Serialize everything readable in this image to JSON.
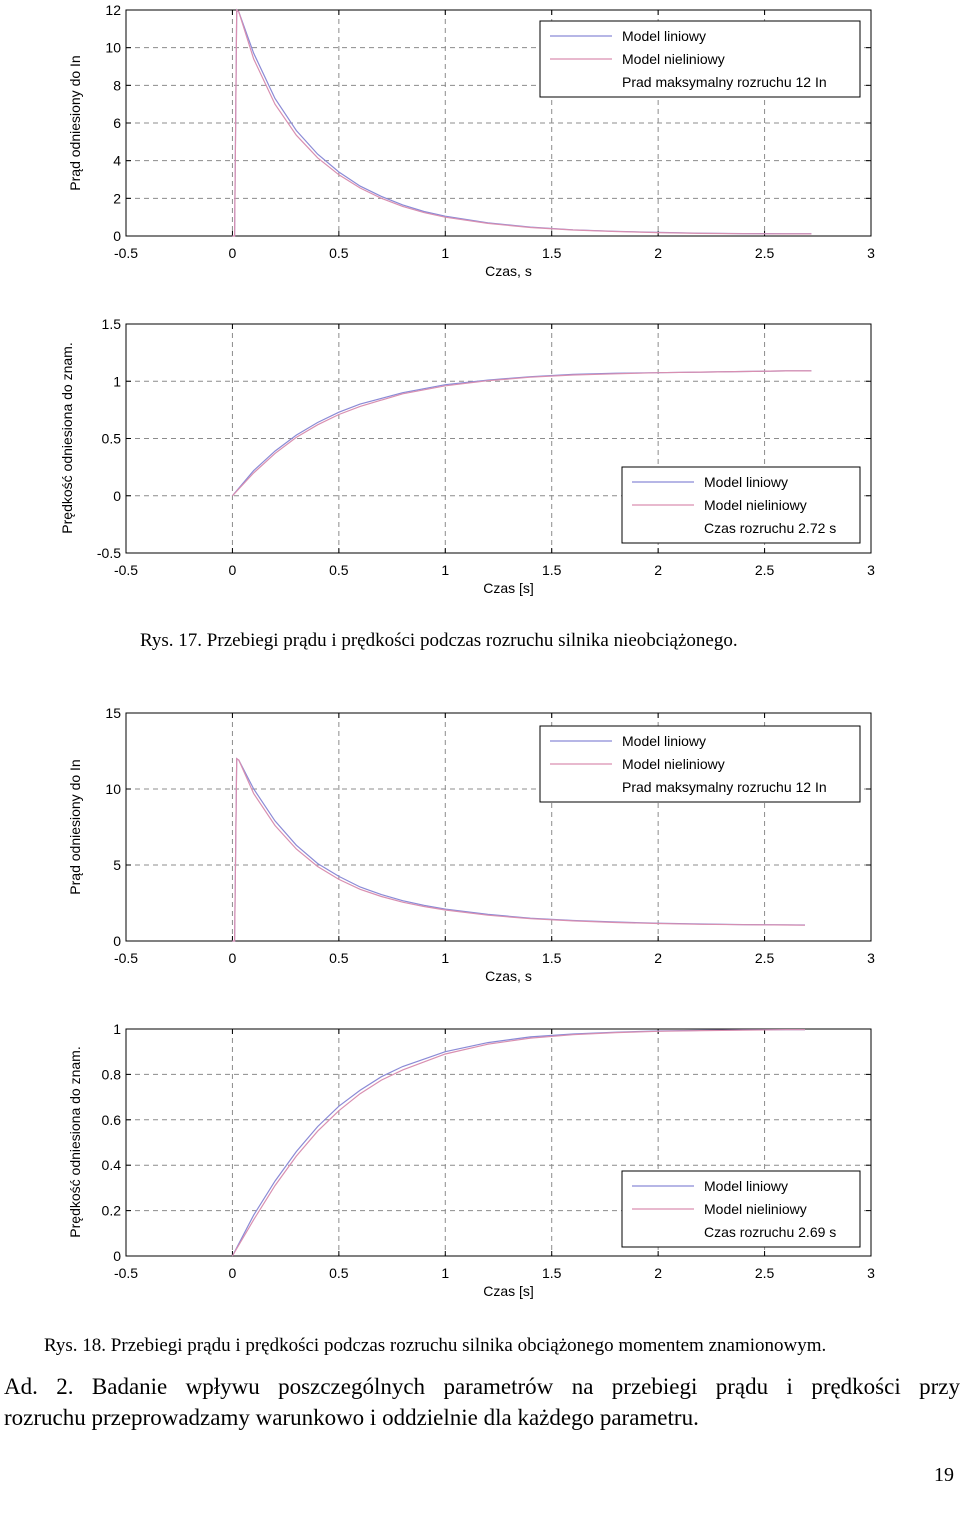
{
  "captions": {
    "fig17": "Rys. 17. Przebiegi prądu i prędkości podczas rozruchu silnika nieobciążonego.",
    "fig18": "Rys. 18. Przebiegi prądu i prędkości podczas rozruchu silnika obciążonego momentem znamionowym."
  },
  "paragraph": {
    "line1": "Ad. 2. Badanie wpływu poszczególnych parametrów na przebiegi prądu i prędkości przy",
    "line2": "rozruchu przeprowadzamy warunkowo i oddzielnie dla każdego parametru."
  },
  "page_number": "19",
  "colors": {
    "linear": "#8a8ad6",
    "nonlinear": "#d98fb0",
    "grid": "#8c8c8c",
    "axis": "#000000"
  },
  "chart_data": [
    {
      "type": "line",
      "id": "fig17-current",
      "xlabel": "Czas, s",
      "ylabel": "Prąd odniesiony do In",
      "xlim": [
        -0.5,
        3
      ],
      "ylim": [
        0,
        12
      ],
      "xticks": [
        -0.5,
        0,
        0.5,
        1,
        1.5,
        2,
        2.5,
        3
      ],
      "yticks": [
        0,
        2,
        4,
        6,
        8,
        10,
        12
      ],
      "legend_position": "top-right",
      "legend": [
        "Model liniowy",
        "Model nieliniowy",
        "Prad maksymalny rozruchu 12 In"
      ],
      "series": [
        {
          "name": "Model liniowy",
          "x": [
            0,
            0.01,
            0.02,
            0.03,
            0.1,
            0.2,
            0.3,
            0.4,
            0.5,
            0.6,
            0.7,
            0.8,
            0.9,
            1.0,
            1.2,
            1.4,
            1.6,
            1.8,
            2.0,
            2.2,
            2.4,
            2.6,
            2.72
          ],
          "y": [
            0,
            0,
            12.0,
            11.9,
            9.7,
            7.3,
            5.6,
            4.35,
            3.4,
            2.65,
            2.1,
            1.65,
            1.3,
            1.05,
            0.7,
            0.47,
            0.33,
            0.25,
            0.19,
            0.15,
            0.13,
            0.12,
            0.12
          ]
        },
        {
          "name": "Model nieliniowy",
          "x": [
            0,
            0.01,
            0.02,
            0.03,
            0.1,
            0.2,
            0.3,
            0.4,
            0.5,
            0.6,
            0.7,
            0.8,
            0.9,
            1.0,
            1.2,
            1.4,
            1.6,
            1.8,
            2.0,
            2.2,
            2.4,
            2.6,
            2.72
          ],
          "y": [
            0,
            0,
            12.0,
            11.9,
            9.4,
            7.0,
            5.35,
            4.15,
            3.25,
            2.55,
            2.0,
            1.57,
            1.24,
            1.0,
            0.67,
            0.45,
            0.32,
            0.24,
            0.18,
            0.14,
            0.12,
            0.11,
            0.11
          ]
        }
      ]
    },
    {
      "type": "line",
      "id": "fig17-speed",
      "xlabel": "Czas [s]",
      "ylabel": "Prędkość odniesiona do znam.",
      "xlim": [
        -0.5,
        3
      ],
      "ylim": [
        -0.5,
        1.5
      ],
      "xticks": [
        -0.5,
        0,
        0.5,
        1,
        1.5,
        2,
        2.5,
        3
      ],
      "yticks": [
        -0.5,
        0,
        0.5,
        1,
        1.5
      ],
      "legend_position": "bottom-right",
      "legend": [
        "Model liniowy",
        "Model nieliniowy",
        "Czas rozruchu 2.72 s"
      ],
      "series": [
        {
          "name": "Model liniowy",
          "x": [
            0,
            0.1,
            0.2,
            0.3,
            0.4,
            0.5,
            0.6,
            0.8,
            1.0,
            1.2,
            1.4,
            1.6,
            1.8,
            2.0,
            2.2,
            2.4,
            2.6,
            2.72
          ],
          "y": [
            0,
            0.22,
            0.39,
            0.53,
            0.64,
            0.73,
            0.8,
            0.9,
            0.97,
            1.01,
            1.04,
            1.06,
            1.07,
            1.075,
            1.08,
            1.085,
            1.09,
            1.09
          ]
        },
        {
          "name": "Model nieliniowy",
          "x": [
            0,
            0.1,
            0.2,
            0.3,
            0.4,
            0.5,
            0.6,
            0.8,
            1.0,
            1.2,
            1.4,
            1.6,
            1.8,
            2.0,
            2.2,
            2.4,
            2.6,
            2.72
          ],
          "y": [
            0,
            0.2,
            0.37,
            0.51,
            0.62,
            0.71,
            0.78,
            0.89,
            0.96,
            1.005,
            1.035,
            1.055,
            1.065,
            1.075,
            1.08,
            1.085,
            1.09,
            1.09
          ]
        }
      ]
    },
    {
      "type": "line",
      "id": "fig18-current",
      "xlabel": "Czas, s",
      "ylabel": "Prąd odniesiony do In",
      "xlim": [
        -0.5,
        3
      ],
      "ylim": [
        0,
        15
      ],
      "xticks": [
        -0.5,
        0,
        0.5,
        1,
        1.5,
        2,
        2.5,
        3
      ],
      "yticks": [
        0,
        5,
        10,
        15
      ],
      "legend_position": "top-right",
      "legend": [
        "Model liniowy",
        "Model nieliniowy",
        "Prad maksymalny rozruchu 12 In"
      ],
      "series": [
        {
          "name": "Model liniowy",
          "x": [
            0,
            0.01,
            0.02,
            0.03,
            0.1,
            0.2,
            0.3,
            0.4,
            0.5,
            0.6,
            0.7,
            0.8,
            0.9,
            1.0,
            1.2,
            1.4,
            1.6,
            1.8,
            2.0,
            2.2,
            2.4,
            2.6,
            2.69
          ],
          "y": [
            0,
            0,
            12.0,
            11.9,
            10.0,
            7.9,
            6.3,
            5.1,
            4.25,
            3.55,
            3.05,
            2.65,
            2.35,
            2.1,
            1.75,
            1.5,
            1.35,
            1.25,
            1.17,
            1.12,
            1.08,
            1.06,
            1.05
          ]
        },
        {
          "name": "Model nieliniowy",
          "x": [
            0,
            0.01,
            0.02,
            0.03,
            0.1,
            0.2,
            0.3,
            0.4,
            0.5,
            0.6,
            0.7,
            0.8,
            0.9,
            1.0,
            1.2,
            1.4,
            1.6,
            1.8,
            2.0,
            2.2,
            2.4,
            2.6,
            2.69
          ],
          "y": [
            0,
            0,
            12.0,
            11.9,
            9.7,
            7.6,
            6.05,
            4.9,
            4.05,
            3.4,
            2.93,
            2.55,
            2.27,
            2.04,
            1.7,
            1.47,
            1.32,
            1.22,
            1.15,
            1.1,
            1.07,
            1.05,
            1.04
          ]
        }
      ]
    },
    {
      "type": "line",
      "id": "fig18-speed",
      "xlabel": "Czas [s]",
      "ylabel": "Prędkość odniesiona do znam.",
      "xlim": [
        -0.5,
        3
      ],
      "ylim": [
        0,
        1
      ],
      "xticks": [
        -0.5,
        0,
        0.5,
        1,
        1.5,
        2,
        2.5,
        3
      ],
      "yticks": [
        0,
        0.2,
        0.4,
        0.6,
        0.8,
        1
      ],
      "legend_position": "bottom-right",
      "legend": [
        "Model liniowy",
        "Model nieliniowy",
        "Czas rozruchu 2.69 s"
      ],
      "series": [
        {
          "name": "Model liniowy",
          "x": [
            0,
            0.1,
            0.2,
            0.3,
            0.4,
            0.5,
            0.6,
            0.7,
            0.8,
            1.0,
            1.2,
            1.4,
            1.6,
            1.8,
            2.0,
            2.2,
            2.4,
            2.6,
            2.69
          ],
          "y": [
            0,
            0.18,
            0.33,
            0.46,
            0.57,
            0.66,
            0.73,
            0.79,
            0.835,
            0.9,
            0.94,
            0.965,
            0.978,
            0.986,
            0.991,
            0.994,
            0.996,
            0.997,
            0.997
          ]
        },
        {
          "name": "Model nieliniowy",
          "x": [
            0,
            0.1,
            0.2,
            0.3,
            0.4,
            0.5,
            0.6,
            0.7,
            0.8,
            1.0,
            1.2,
            1.4,
            1.6,
            1.8,
            2.0,
            2.2,
            2.4,
            2.6,
            2.69
          ],
          "y": [
            0,
            0.16,
            0.31,
            0.44,
            0.55,
            0.64,
            0.715,
            0.775,
            0.82,
            0.89,
            0.933,
            0.96,
            0.975,
            0.984,
            0.99,
            0.993,
            0.995,
            0.997,
            0.997
          ]
        }
      ]
    }
  ]
}
